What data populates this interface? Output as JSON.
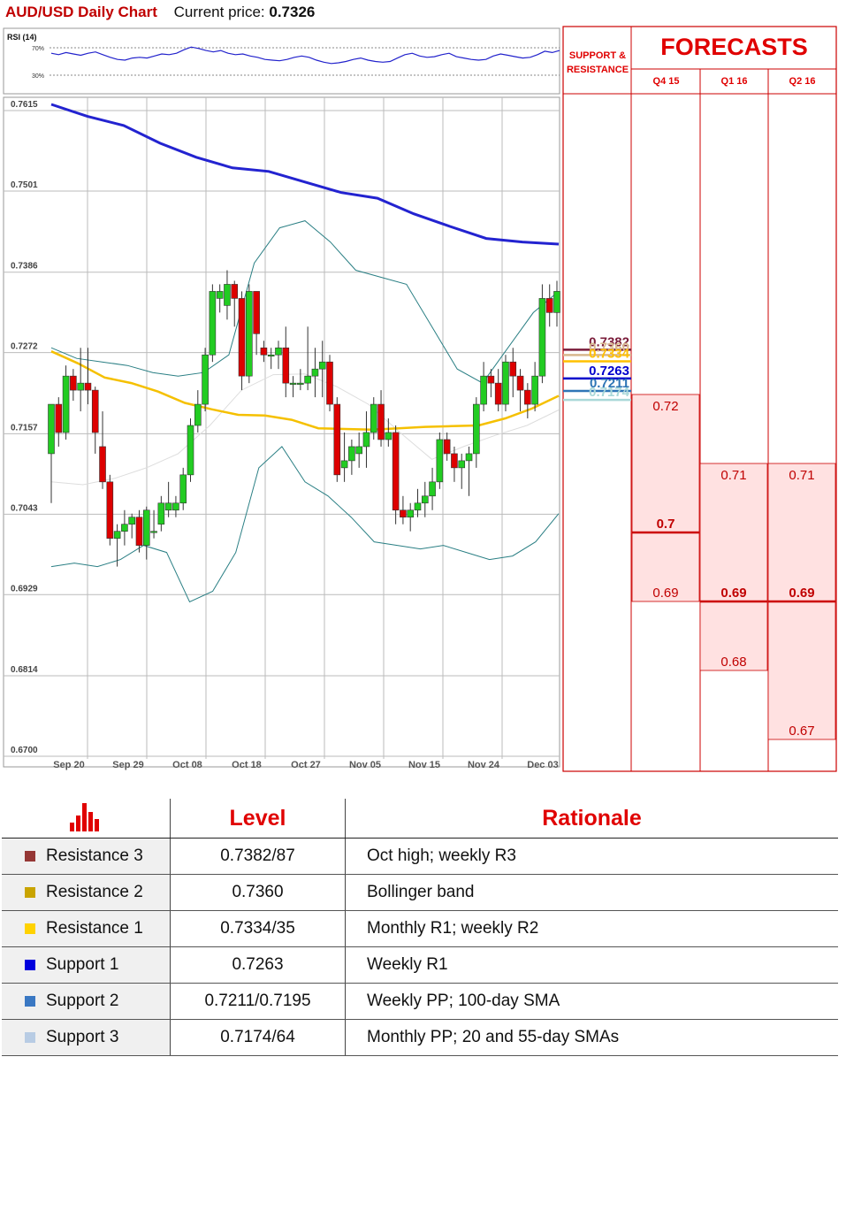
{
  "header": {
    "title": "AUD/USD Daily Chart",
    "price_label": "Current price:",
    "price_value": "0.7326"
  },
  "rsi": {
    "label": "RSI (14)",
    "upper_label": "70%",
    "lower_label": "30%",
    "values": [
      62,
      60,
      63,
      61,
      59,
      62,
      64,
      60,
      56,
      53,
      52,
      55,
      56,
      55,
      58,
      61,
      60,
      62,
      67,
      71,
      69,
      66,
      64,
      66,
      62,
      60,
      61,
      58,
      56,
      53,
      52,
      51,
      53,
      56,
      58,
      56,
      52,
      49,
      47,
      48,
      50,
      53,
      55,
      52,
      50,
      49,
      50,
      55,
      60,
      62,
      58,
      56,
      57,
      60,
      62,
      57,
      55,
      53,
      52,
      53,
      58,
      61,
      59,
      57,
      55,
      56,
      60,
      65,
      63,
      66
    ]
  },
  "chart_data": {
    "type": "candlestick",
    "ylim": [
      0.67,
      0.7615
    ],
    "y_ticks": [
      "0.7615",
      "0.7501",
      "0.7386",
      "0.7272",
      "0.7157",
      "0.7043",
      "0.6929",
      "0.6814",
      "0.6700"
    ],
    "x_ticks": [
      "Sep 20",
      "Sep 29",
      "Oct 08",
      "Oct 18",
      "Oct 27",
      "Nov 05",
      "Nov 15",
      "Nov 24",
      "Dec 03"
    ],
    "candles": [
      [
        0.712,
        0.719,
        0.705,
        0.719
      ],
      [
        0.719,
        0.715,
        0.713,
        0.72
      ],
      [
        0.715,
        0.723,
        0.714,
        0.7245
      ],
      [
        0.723,
        0.721,
        0.7195,
        0.724
      ],
      [
        0.721,
        0.722,
        0.718,
        0.727
      ],
      [
        0.722,
        0.721,
        0.719,
        0.727
      ],
      [
        0.721,
        0.715,
        0.712,
        0.7215
      ],
      [
        0.713,
        0.708,
        0.707,
        0.718
      ],
      [
        0.708,
        0.7,
        0.699,
        0.709
      ],
      [
        0.7,
        0.701,
        0.696,
        0.702
      ],
      [
        0.701,
        0.702,
        0.699,
        0.704
      ],
      [
        0.702,
        0.703,
        0.7,
        0.7035
      ],
      [
        0.703,
        0.699,
        0.698,
        0.704
      ],
      [
        0.699,
        0.704,
        0.697,
        0.7045
      ],
      [
        0.701,
        0.701,
        0.7,
        0.704
      ],
      [
        0.702,
        0.705,
        0.701,
        0.706
      ],
      [
        0.704,
        0.705,
        0.703,
        0.708
      ],
      [
        0.704,
        0.705,
        0.703,
        0.706
      ],
      [
        0.705,
        0.709,
        0.704,
        0.71
      ],
      [
        0.709,
        0.716,
        0.708,
        0.717
      ],
      [
        0.716,
        0.719,
        0.715,
        0.721
      ],
      [
        0.719,
        0.726,
        0.718,
        0.727
      ],
      [
        0.726,
        0.735,
        0.725,
        0.736
      ],
      [
        0.734,
        0.735,
        0.732,
        0.736
      ],
      [
        0.733,
        0.736,
        0.731,
        0.738
      ],
      [
        0.736,
        0.734,
        0.73,
        0.7365
      ],
      [
        0.734,
        0.723,
        0.721,
        0.735
      ],
      [
        0.723,
        0.735,
        0.722,
        0.736
      ],
      [
        0.735,
        0.729,
        0.726,
        0.735
      ],
      [
        0.727,
        0.726,
        0.725,
        0.728
      ],
      [
        0.726,
        0.726,
        0.724,
        0.727
      ],
      [
        0.726,
        0.727,
        0.724,
        0.728
      ],
      [
        0.727,
        0.722,
        0.72,
        0.73
      ],
      [
        0.722,
        0.722,
        0.72,
        0.723
      ],
      [
        0.722,
        0.722,
        0.721,
        0.724
      ],
      [
        0.722,
        0.723,
        0.721,
        0.73
      ],
      [
        0.723,
        0.724,
        0.72,
        0.727
      ],
      [
        0.724,
        0.725,
        0.72,
        0.728
      ],
      [
        0.725,
        0.719,
        0.718,
        0.726
      ],
      [
        0.719,
        0.709,
        0.708,
        0.72
      ],
      [
        0.71,
        0.711,
        0.708,
        0.715
      ],
      [
        0.711,
        0.713,
        0.709,
        0.714
      ],
      [
        0.712,
        0.713,
        0.71,
        0.715
      ],
      [
        0.713,
        0.715,
        0.71,
        0.718
      ],
      [
        0.715,
        0.719,
        0.714,
        0.72
      ],
      [
        0.719,
        0.714,
        0.713,
        0.721
      ],
      [
        0.714,
        0.715,
        0.713,
        0.717
      ],
      [
        0.715,
        0.704,
        0.702,
        0.716
      ],
      [
        0.704,
        0.703,
        0.702,
        0.706
      ],
      [
        0.703,
        0.704,
        0.701,
        0.705
      ],
      [
        0.704,
        0.705,
        0.703,
        0.707
      ],
      [
        0.705,
        0.706,
        0.703,
        0.708
      ],
      [
        0.706,
        0.708,
        0.704,
        0.71
      ],
      [
        0.708,
        0.714,
        0.707,
        0.715
      ],
      [
        0.714,
        0.712,
        0.711,
        0.715
      ],
      [
        0.712,
        0.71,
        0.708,
        0.713
      ],
      [
        0.71,
        0.711,
        0.707,
        0.712
      ],
      [
        0.711,
        0.712,
        0.706,
        0.713
      ],
      [
        0.712,
        0.719,
        0.71,
        0.72
      ],
      [
        0.719,
        0.723,
        0.718,
        0.725
      ],
      [
        0.723,
        0.722,
        0.72,
        0.724
      ],
      [
        0.722,
        0.719,
        0.718,
        0.724
      ],
      [
        0.719,
        0.725,
        0.718,
        0.726
      ],
      [
        0.725,
        0.723,
        0.72,
        0.727
      ],
      [
        0.723,
        0.721,
        0.718,
        0.724
      ],
      [
        0.721,
        0.719,
        0.717,
        0.722
      ],
      [
        0.719,
        0.723,
        0.718,
        0.725
      ],
      [
        0.723,
        0.734,
        0.722,
        0.736
      ],
      [
        0.734,
        0.732,
        0.73,
        0.736
      ],
      [
        0.732,
        0.735,
        0.73,
        0.7365
      ]
    ],
    "sma200": [
      0.7615,
      0.7598,
      0.7585,
      0.756,
      0.754,
      0.7525,
      0.752,
      0.7505,
      0.749,
      0.7482,
      0.746,
      0.7442,
      0.7425,
      0.742,
      0.7417
    ],
    "sma55": [
      0.7265,
      0.7248,
      0.7228,
      0.722,
      0.7208,
      0.7192,
      0.7183,
      0.7175,
      0.7174,
      0.7168,
      0.7156,
      0.7155,
      0.7154,
      0.7156,
      0.7158,
      0.7159,
      0.716,
      0.717,
      0.7184,
      0.7202
    ],
    "sma20": [
      0.708,
      0.7076,
      0.7085,
      0.71,
      0.712,
      0.716,
      0.721,
      0.7232,
      0.7233,
      0.7215,
      0.719,
      0.715,
      0.7112,
      0.713,
      0.7146,
      0.716,
      0.7182
    ],
    "bb_upper": [
      0.727,
      0.7255,
      0.725,
      0.7245,
      0.7235,
      0.723,
      0.7235,
      0.726,
      0.739,
      0.744,
      0.745,
      0.742,
      0.738,
      0.737,
      0.736,
      0.73,
      0.724,
      0.722,
      0.727,
      0.732,
      0.735
    ],
    "bb_lower": [
      0.696,
      0.6965,
      0.696,
      0.697,
      0.699,
      0.698,
      0.691,
      0.6925,
      0.698,
      0.71,
      0.713,
      0.708,
      0.706,
      0.703,
      0.6995,
      0.699,
      0.6985,
      0.699,
      0.698,
      0.697,
      0.6975,
      0.6995,
      0.7035
    ],
    "levels": [
      {
        "value": 0.7382,
        "label": "0.7382",
        "color": "#7a1c3a"
      },
      {
        "value": 0.736,
        "label": "0.7360",
        "color": "#d8b88e"
      },
      {
        "value": 0.7334,
        "label": "0.7334",
        "color": "#ffc000"
      },
      {
        "value": 0.7263,
        "label": "0.7263",
        "color": "#0000cc"
      },
      {
        "value": 0.7211,
        "label": "0.7211",
        "color": "#2e75b6"
      },
      {
        "value": 0.7174,
        "label": "0.7174",
        "color": "#a9d8d8"
      }
    ]
  },
  "panel": {
    "sr_title_1": "SUPPORT &",
    "sr_title_2": "RESISTANCE",
    "forecast_title": "FORECASTS",
    "quarters": [
      "Q4 15",
      "Q1 16",
      "Q2 16"
    ],
    "forecasts": [
      {
        "high": "0.72",
        "mid": "0.7",
        "low": "0.69",
        "high_v": 0.72,
        "mid_v": 0.7,
        "low_v": 0.69
      },
      {
        "high": "0.71",
        "mid": "0.69",
        "low": "0.68",
        "high_v": 0.71,
        "mid_v": 0.69,
        "low_v": 0.68
      },
      {
        "high": "0.71",
        "mid": "0.69",
        "low": "0.67",
        "high_v": 0.71,
        "mid_v": 0.69,
        "low_v": 0.67
      }
    ]
  },
  "levels_table": {
    "icon": "bar-chart-icon",
    "level_header": "Level",
    "rationale_header": "Rationale",
    "rows": [
      {
        "name": "Resistance 3",
        "level": "0.7382/87",
        "rationale": "Oct high; weekly R3",
        "color": "#953735"
      },
      {
        "name": "Resistance 2",
        "level": "0.7360",
        "rationale": "Bollinger band",
        "color": "#c9a400"
      },
      {
        "name": "Resistance 1",
        "level": "0.7334/35",
        "rationale": "Monthly R1; weekly R2",
        "color": "#ffd200"
      },
      {
        "name": "Support 1",
        "level": "0.7263",
        "rationale": "Weekly R1",
        "color": "#0000dd"
      },
      {
        "name": "Support 2",
        "level": "0.7211/0.7195",
        "rationale": "Weekly PP; 100-day SMA",
        "color": "#3a78c3"
      },
      {
        "name": "Support 3",
        "level": "0.7174/64",
        "rationale": "Monthly PP; 20 and 55-day SMAs",
        "color": "#b8cce4"
      }
    ]
  }
}
